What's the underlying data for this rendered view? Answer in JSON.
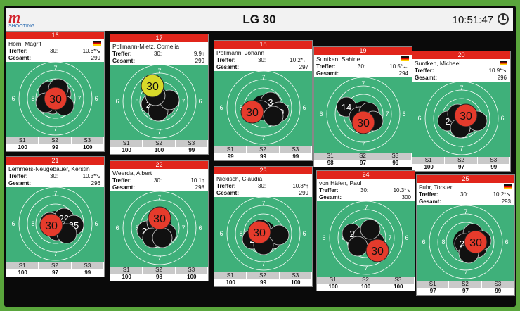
{
  "header": {
    "logo": "m",
    "logo_sub": "SHOOTING",
    "title": "LG 30",
    "clock": "10:51:47"
  },
  "labels": {
    "treffer": "Treffer:",
    "gesamt": "Gesamt:",
    "s1": "S1",
    "s2": "S2",
    "s3": "S3"
  },
  "lanes": [
    {
      "lane": "16",
      "name": "Horn, Magrit",
      "shots": "30:",
      "last": "10.6*↘",
      "total": "299",
      "s": [
        "100",
        "99",
        "100"
      ],
      "flag": true,
      "big": "30",
      "bigYellow": false
    },
    {
      "lane": "17",
      "name": "Pollmann-Mietz, Cornelia",
      "shots": "30:",
      "last": "9.9↑",
      "total": "299",
      "s": [
        "100",
        "100",
        "99"
      ],
      "flag": false,
      "big": "30",
      "bigYellow": true
    },
    {
      "lane": "18",
      "name": "Pollmann, Johann",
      "shots": "30:",
      "last": "10.2*←",
      "total": "297",
      "s": [
        "99",
        "99",
        "99"
      ],
      "flag": false,
      "big": "30",
      "bigYellow": false
    },
    {
      "lane": "19",
      "name": "Suntken, Sabine",
      "shots": "30:",
      "last": "10.5*←",
      "total": "294",
      "s": [
        "98",
        "97",
        "99"
      ],
      "flag": true,
      "big": "30",
      "bigYellow": false
    },
    {
      "lane": "20",
      "name": "Suntken, Michael",
      "shots": "",
      "last": "10.9*↘",
      "total": "296",
      "s": [
        "100",
        "97",
        "99"
      ],
      "flag": true,
      "big": "30",
      "bigYellow": false
    },
    {
      "lane": "21",
      "name": "Lemmers-Neugebauer, Kerstin",
      "shots": "30:",
      "last": "10.3*↘",
      "total": "296",
      "s": [
        "100",
        "97",
        "99"
      ],
      "flag": false,
      "big": "30",
      "bigYellow": false
    },
    {
      "lane": "22",
      "name": "Weerda, Albert",
      "shots": "30:",
      "last": "10.1↑",
      "total": "298",
      "s": [
        "100",
        "98",
        "100"
      ],
      "flag": false,
      "big": "30",
      "bigYellow": false
    },
    {
      "lane": "23",
      "name": "Nickisch, Claudia",
      "shots": "30:",
      "last": "10.8*↑",
      "total": "299",
      "s": [
        "100",
        "99",
        "100"
      ],
      "flag": false,
      "big": "30",
      "bigYellow": false
    },
    {
      "lane": "24",
      "name": "von Häfen, Paul",
      "shots": "30:",
      "last": "10.3*↘",
      "total": "300",
      "s": [
        "100",
        "100",
        "100"
      ],
      "flag": false,
      "big": "30",
      "bigYellow": false
    },
    {
      "lane": "25",
      "name": "Fuhr, Torsten",
      "shots": "30:",
      "last": "10.2*↘",
      "total": "293",
      "s": [
        "97",
        "97",
        "99"
      ],
      "flag": true,
      "big": "30",
      "bigYellow": false
    }
  ],
  "colors": {
    "lane_red": "#e1251b",
    "target_green": "#3fb07a",
    "shot_red": "#e53b2c",
    "shot_yellow": "#d7d92a"
  }
}
